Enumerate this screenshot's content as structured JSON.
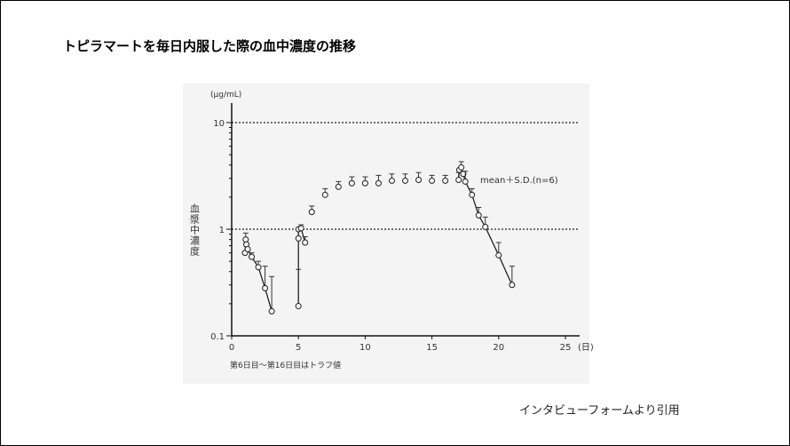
{
  "slide": {
    "title": "トピラマートを毎日内服した際の血中濃度の推移",
    "source": "インタビューフォームより引用"
  },
  "chart_data": {
    "type": "scatter",
    "title": "",
    "xlabel": "(日)",
    "ylabel": "血漿中濃度",
    "yunit": "(μg/mL)",
    "note": "第6日目～第16日目はトラフ値",
    "legend": "mean＋S.D.(n=6)",
    "yscale": "log",
    "xlim": [
      0,
      25
    ],
    "ylim": [
      0.1,
      10
    ],
    "xticks": [
      "0",
      "5",
      "10",
      "15",
      "20",
      "25"
    ],
    "yticks": [
      "0.1",
      "1",
      "10"
    ],
    "reference_lines": [
      1,
      10
    ],
    "series": [
      {
        "points": [
          {
            "x": 1.0,
            "y": 0.6
          },
          {
            "x": 1.05,
            "y": 0.8,
            "sd_top": 0.92
          },
          {
            "x": 1.1,
            "y": 0.72
          },
          {
            "x": 1.2,
            "y": 0.65
          },
          {
            "x": 1.5,
            "y": 0.55,
            "sd_top": 0.6
          },
          {
            "x": 2.0,
            "y": 0.44,
            "sd_top": 0.5
          },
          {
            "x": 2.5,
            "y": 0.28,
            "sd_top": 0.45
          },
          {
            "x": 3.0,
            "y": 0.17,
            "sd_top": 0.36
          }
        ],
        "connected": true
      },
      {
        "points": [
          {
            "x": 5.0,
            "y": 0.19,
            "sd_top": 0.42
          },
          {
            "x": 5.0,
            "y": 0.82
          },
          {
            "x": 5.0,
            "y": 1.0
          },
          {
            "x": 5.2,
            "y": 1.02,
            "sd_top": 1.1
          },
          {
            "x": 5.5,
            "y": 0.75,
            "sd_top": 0.85
          }
        ],
        "connected": true
      },
      {
        "points": [
          {
            "x": 6,
            "y": 1.45,
            "sd_top": 1.65
          },
          {
            "x": 7,
            "y": 2.1,
            "sd_top": 2.4
          },
          {
            "x": 8,
            "y": 2.5,
            "sd_top": 2.8
          },
          {
            "x": 9,
            "y": 2.7,
            "sd_top": 3.1
          },
          {
            "x": 10,
            "y": 2.7,
            "sd_top": 3.1
          },
          {
            "x": 11,
            "y": 2.7,
            "sd_top": 3.2
          },
          {
            "x": 12,
            "y": 2.85,
            "sd_top": 3.3
          },
          {
            "x": 13,
            "y": 2.85,
            "sd_top": 3.3
          },
          {
            "x": 14,
            "y": 2.9,
            "sd_top": 3.4
          },
          {
            "x": 15,
            "y": 2.85,
            "sd_top": 3.2
          },
          {
            "x": 16,
            "y": 2.85,
            "sd_top": 3.2
          }
        ],
        "connected": false
      },
      {
        "points": [
          {
            "x": 17.0,
            "y": 2.9,
            "sd_top": 3.4
          },
          {
            "x": 17.05,
            "y": 3.6
          },
          {
            "x": 17.2,
            "y": 3.8,
            "sd_top": 4.3
          },
          {
            "x": 17.35,
            "y": 3.3
          },
          {
            "x": 17.5,
            "y": 2.8,
            "sd_top": 3.5
          },
          {
            "x": 18.0,
            "y": 2.1,
            "sd_top": 2.4
          },
          {
            "x": 18.5,
            "y": 1.35,
            "sd_top": 1.6
          },
          {
            "x": 19.0,
            "y": 1.05,
            "sd_top": 1.3
          },
          {
            "x": 20.0,
            "y": 0.57,
            "sd_top": 0.75
          },
          {
            "x": 21.0,
            "y": 0.3,
            "sd_top": 0.45
          }
        ],
        "connected": true
      }
    ]
  }
}
